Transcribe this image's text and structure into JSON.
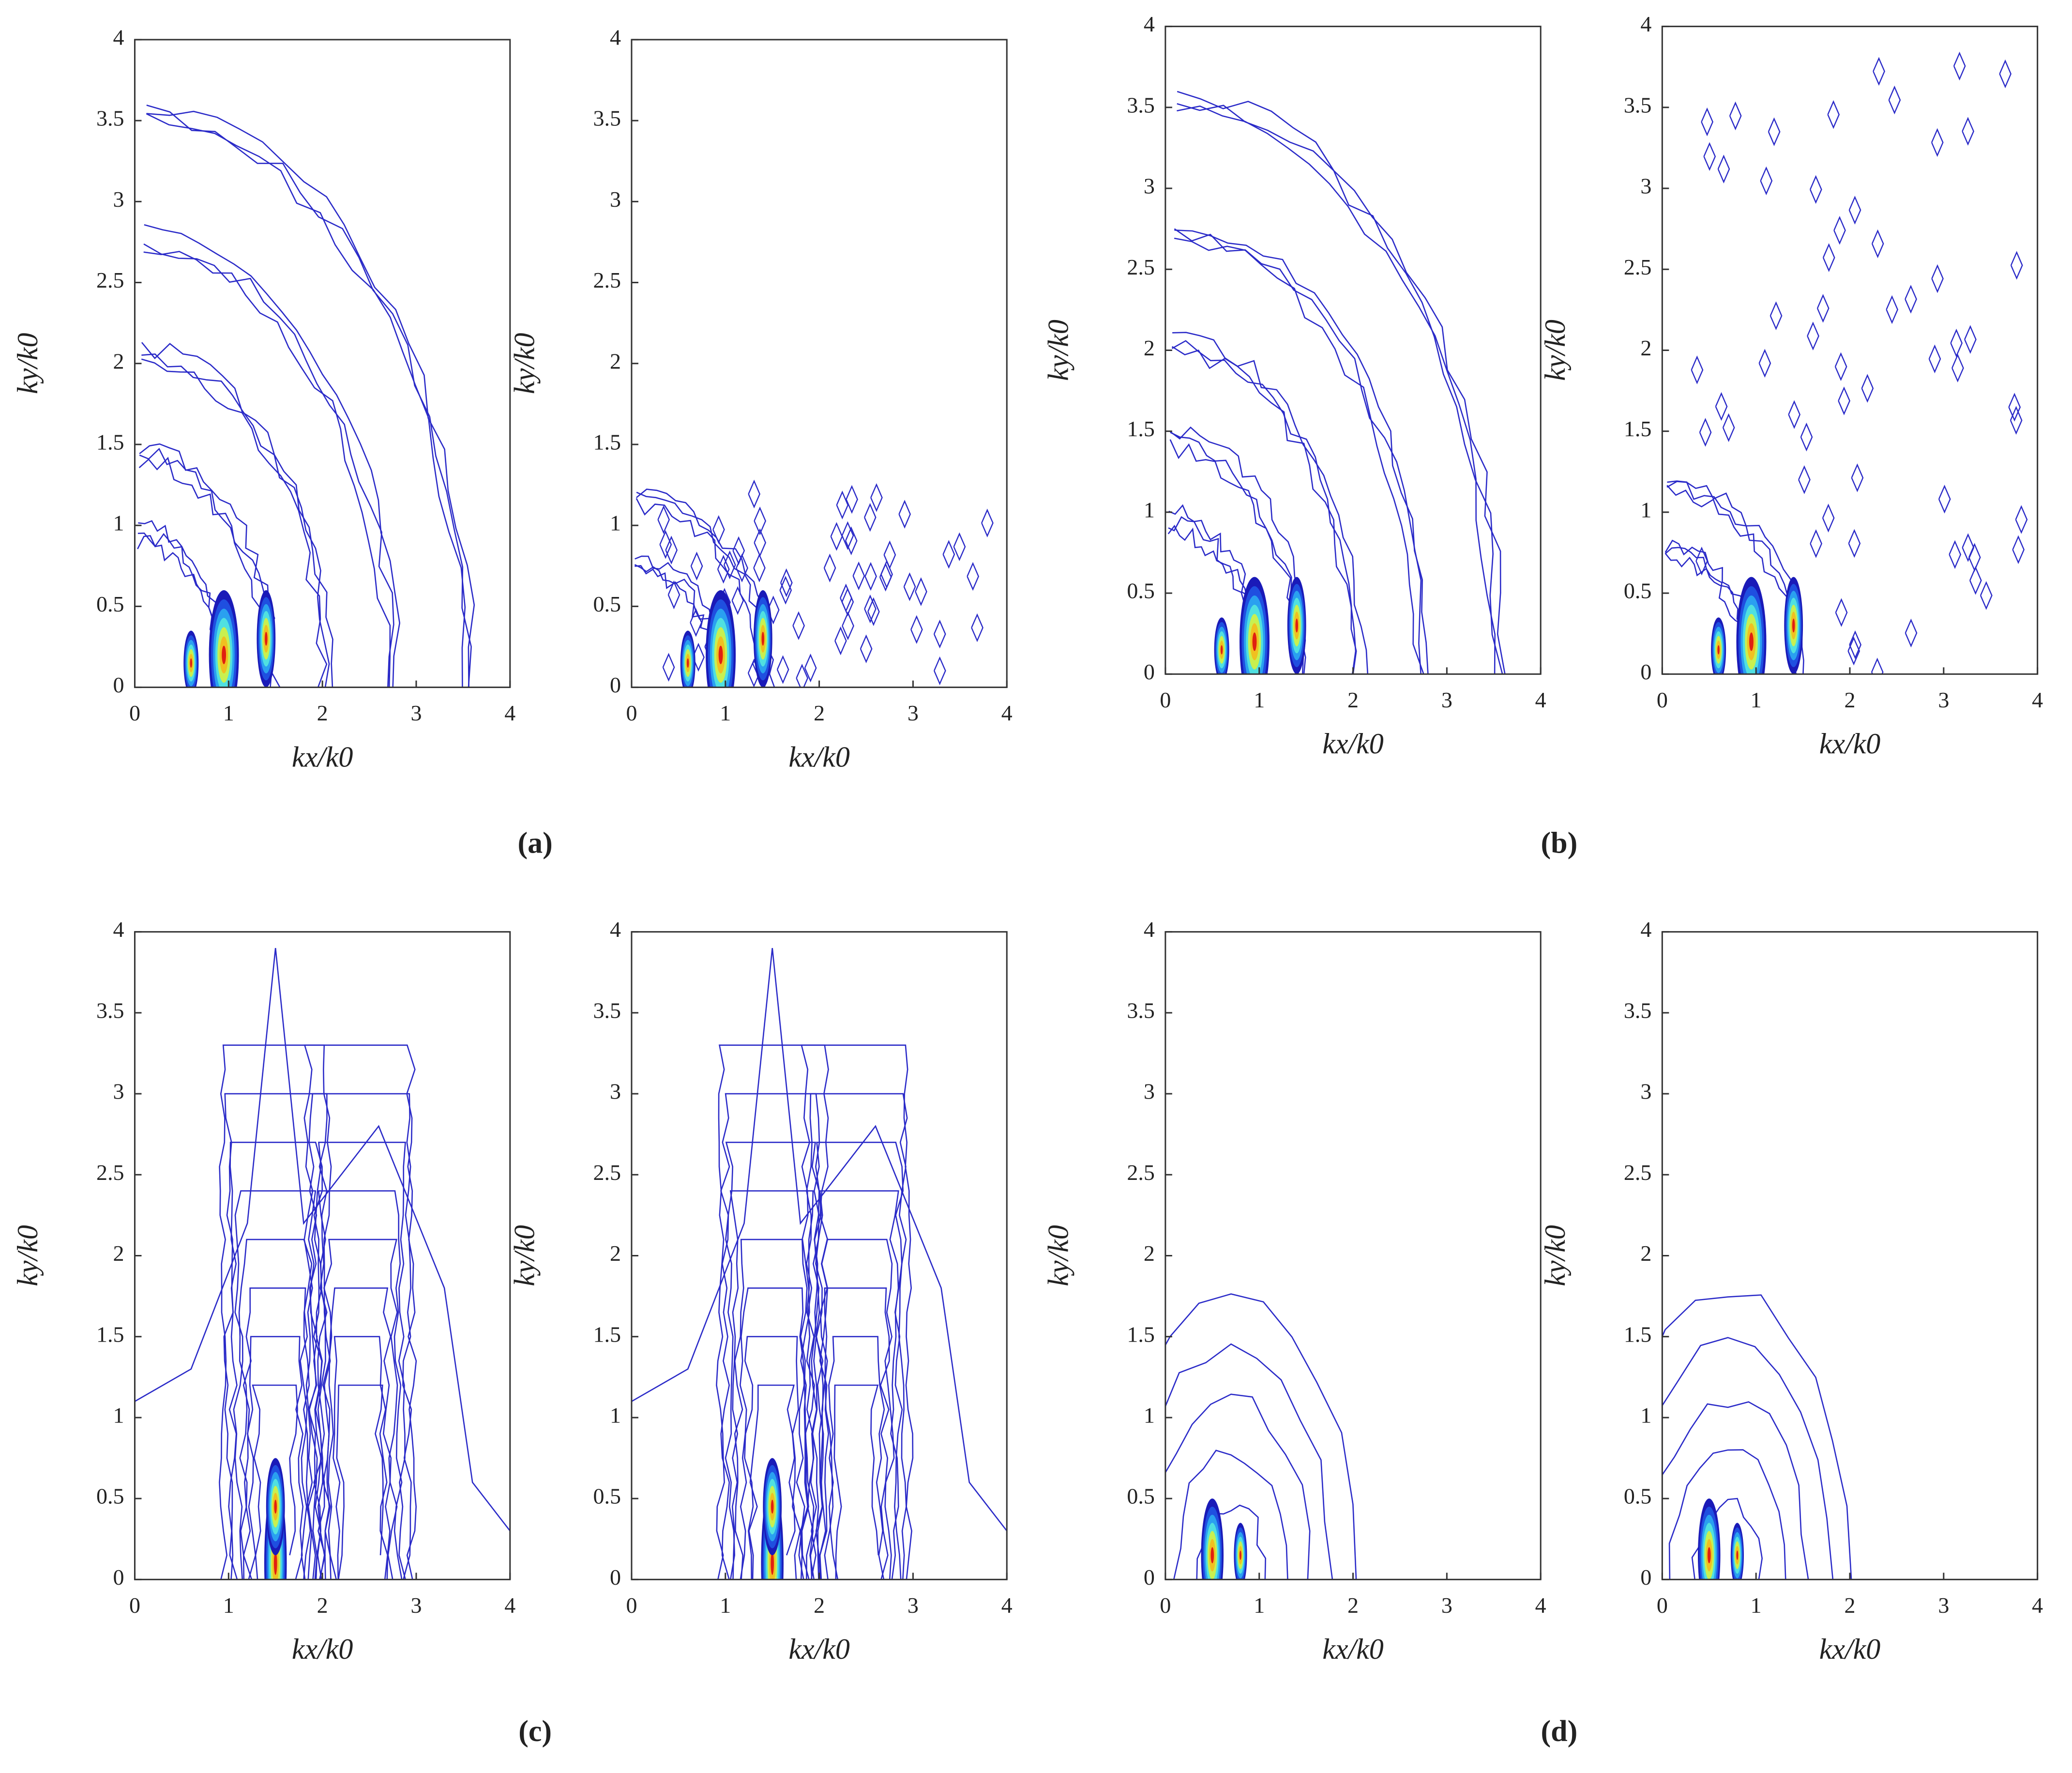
{
  "panel_labels": [
    "(a)",
    "(b)",
    "(c)",
    "(d)"
  ],
  "chart_data": [
    {
      "type": "contour",
      "x_label": "kx/k0",
      "y_label": "ky/k0",
      "xlim": [
        0,
        4
      ],
      "ylim": [
        0,
        4
      ],
      "xticks": [
        0,
        1,
        2,
        3,
        4
      ],
      "yticks": [
        0,
        0.5,
        1,
        1.5,
        2,
        2.5,
        3,
        3.5,
        4
      ]
    },
    {
      "type": "contour",
      "x_label": "kx/k0",
      "y_label": "ky/k0",
      "xlim": [
        0,
        4
      ],
      "ylim": [
        0,
        4
      ],
      "xticks": [
        0,
        1,
        2,
        3,
        4
      ],
      "yticks": [
        0,
        0.5,
        1,
        1.5,
        2,
        2.5,
        3,
        3.5,
        4
      ]
    },
    {
      "type": "contour",
      "x_label": "kx/k0",
      "y_label": "ky/k0",
      "xlim": [
        0,
        4
      ],
      "ylim": [
        0,
        4
      ],
      "xticks": [
        0,
        1,
        2,
        3,
        4
      ],
      "yticks": [
        0,
        0.5,
        1,
        1.5,
        2,
        2.5,
        3,
        3.5,
        4
      ]
    },
    {
      "type": "contour",
      "x_label": "kx/k0",
      "y_label": "ky/k0",
      "xlim": [
        0,
        4
      ],
      "ylim": [
        0,
        4
      ],
      "xticks": [
        0,
        1,
        2,
        3,
        4
      ],
      "yticks": [
        0,
        0.5,
        1,
        1.5,
        2,
        2.5,
        3,
        3.5,
        4
      ]
    },
    {
      "type": "contour",
      "x_label": "kx/k0",
      "y_label": "ky/k0",
      "xlim": [
        0,
        4
      ],
      "ylim": [
        0,
        4
      ],
      "xticks": [
        0,
        1,
        2,
        3,
        4
      ],
      "yticks": [
        0,
        0.5,
        1,
        1.5,
        2,
        2.5,
        3,
        3.5,
        4
      ]
    },
    {
      "type": "contour",
      "x_label": "kx/k0",
      "y_label": "ky/k0",
      "xlim": [
        0,
        4
      ],
      "ylim": [
        0,
        4
      ],
      "xticks": [
        0,
        1,
        2,
        3,
        4
      ],
      "yticks": [
        0,
        0.5,
        1,
        1.5,
        2,
        2.5,
        3,
        3.5,
        4
      ]
    },
    {
      "type": "contour",
      "x_label": "kx/k0",
      "y_label": "ky/k0",
      "xlim": [
        0,
        4
      ],
      "ylim": [
        0,
        4
      ],
      "xticks": [
        0,
        1,
        2,
        3,
        4
      ],
      "yticks": [
        0,
        0.5,
        1,
        1.5,
        2,
        2.5,
        3,
        3.5,
        4
      ]
    },
    {
      "type": "contour",
      "x_label": "kx/k0",
      "y_label": "ky/k0",
      "xlim": [
        0,
        4
      ],
      "ylim": [
        0,
        4
      ],
      "xticks": [
        0,
        1,
        2,
        3,
        4
      ],
      "yticks": [
        0,
        0.5,
        1,
        1.5,
        2,
        2.5,
        3,
        3.5,
        4
      ]
    }
  ]
}
